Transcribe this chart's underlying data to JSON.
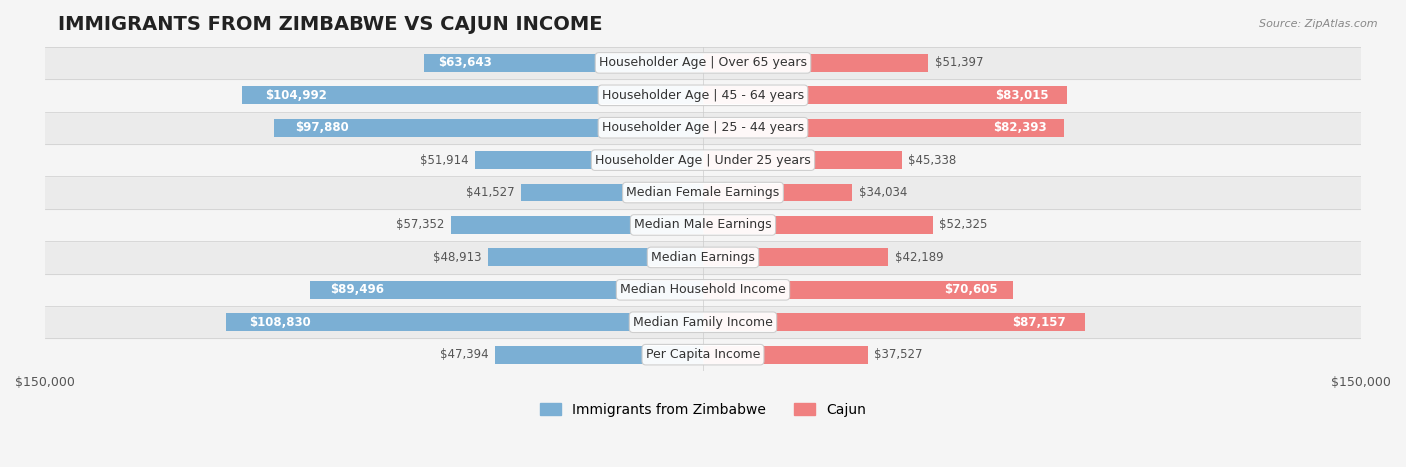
{
  "title": "IMMIGRANTS FROM ZIMBABWE VS CAJUN INCOME",
  "source": "Source: ZipAtlas.com",
  "categories": [
    "Per Capita Income",
    "Median Family Income",
    "Median Household Income",
    "Median Earnings",
    "Median Male Earnings",
    "Median Female Earnings",
    "Householder Age | Under 25 years",
    "Householder Age | 25 - 44 years",
    "Householder Age | 45 - 64 years",
    "Householder Age | Over 65 years"
  ],
  "zimbabwe_values": [
    47394,
    108830,
    89496,
    48913,
    57352,
    41527,
    51914,
    97880,
    104992,
    63643
  ],
  "cajun_values": [
    37527,
    87157,
    70605,
    42189,
    52325,
    34034,
    45338,
    82393,
    83015,
    51397
  ],
  "zimbabwe_color": "#7bafd4",
  "cajun_color": "#f08080",
  "zimbabwe_label_color_threshold": 60000,
  "cajun_label_color_threshold": 60000,
  "max_value": 150000,
  "bar_height": 0.55,
  "background_color": "#f5f5f5",
  "row_bg_even": "#ebebeb",
  "row_bg_odd": "#f5f5f5",
  "label_fontsize": 9.5,
  "title_fontsize": 14,
  "legend_fontsize": 10,
  "category_fontsize": 9,
  "value_label_fontsize": 8.5
}
